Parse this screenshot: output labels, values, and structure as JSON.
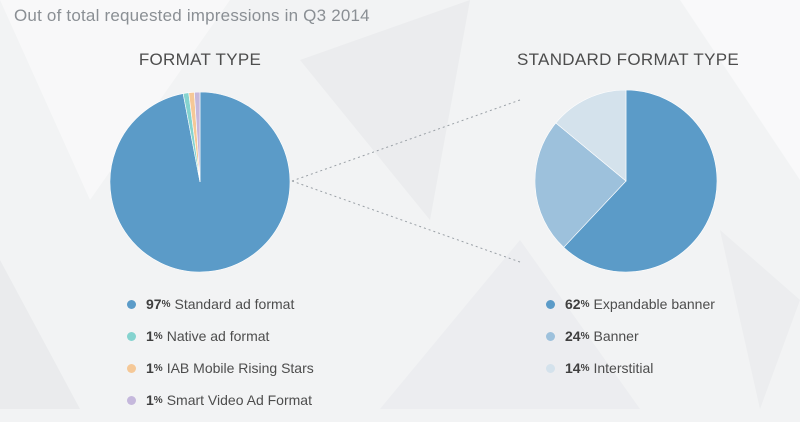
{
  "page_title": "Out of total requested impressions in Q3 2014",
  "colors": {
    "standard": "#5b9bc8",
    "native": "#85d3cf",
    "iab": "#f5c897",
    "video": "#c5b8dc",
    "expandable": "#5b9bc8",
    "banner": "#9dc1dc",
    "interstitial": "#d4e2ec",
    "connector": "#9aa0a6"
  },
  "chart_data": [
    {
      "type": "pie",
      "title": "FORMAT TYPE",
      "labels": [
        "Standard ad format",
        "Native ad format",
        "IAB Mobile Rising Stars",
        "Smart Video Ad Format"
      ],
      "values": [
        97,
        1,
        1,
        1
      ],
      "unit": "%",
      "legend_position": "bottom"
    },
    {
      "type": "pie",
      "title": "STANDARD FORMAT TYPE",
      "labels": [
        "Expandable banner",
        "Banner",
        "Interstitial"
      ],
      "values": [
        62,
        24,
        14
      ],
      "unit": "%",
      "legend_position": "bottom"
    }
  ]
}
